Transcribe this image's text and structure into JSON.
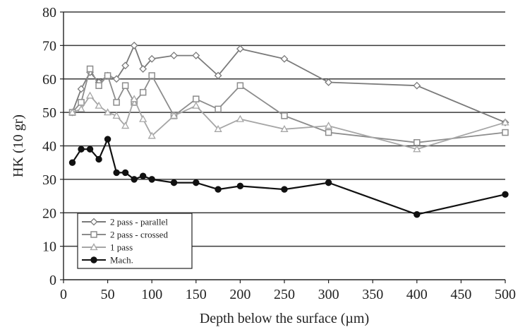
{
  "chart_data": {
    "type": "line",
    "xlabel": "Depth below the surface (µm)",
    "ylabel": "HK (10 gr)",
    "xlim": [
      0,
      500
    ],
    "ylim": [
      0,
      80
    ],
    "x_ticks": [
      0,
      50,
      100,
      150,
      200,
      250,
      300,
      350,
      400,
      450,
      500
    ],
    "y_ticks": [
      0,
      10,
      20,
      30,
      40,
      50,
      60,
      70,
      80
    ],
    "grid": "horizontal",
    "legend_position": "bottom-left",
    "series": [
      {
        "name": "2 pass - parallel",
        "color": "#7a7a7a",
        "marker": "diamond",
        "points": [
          [
            10,
            50
          ],
          [
            20,
            57
          ],
          [
            30,
            62
          ],
          [
            40,
            59
          ],
          [
            50,
            61
          ],
          [
            60,
            60
          ],
          [
            70,
            64
          ],
          [
            80,
            70
          ],
          [
            90,
            63
          ],
          [
            100,
            66
          ],
          [
            125,
            67
          ],
          [
            150,
            67
          ],
          [
            175,
            61
          ],
          [
            200,
            69
          ],
          [
            250,
            66
          ],
          [
            300,
            59
          ],
          [
            400,
            58
          ],
          [
            500,
            47
          ]
        ]
      },
      {
        "name": "2 pass - crossed",
        "color": "#8c8c8c",
        "marker": "square",
        "points": [
          [
            10,
            50
          ],
          [
            20,
            53
          ],
          [
            30,
            63
          ],
          [
            40,
            58
          ],
          [
            50,
            61
          ],
          [
            60,
            53
          ],
          [
            70,
            58
          ],
          [
            80,
            53
          ],
          [
            90,
            56
          ],
          [
            100,
            61
          ],
          [
            125,
            49
          ],
          [
            150,
            54
          ],
          [
            175,
            51
          ],
          [
            200,
            58
          ],
          [
            250,
            49
          ],
          [
            300,
            44
          ],
          [
            400,
            41
          ],
          [
            500,
            44
          ]
        ]
      },
      {
        "name": "1 pass",
        "color": "#a6a6a6",
        "marker": "triangle",
        "points": [
          [
            10,
            50
          ],
          [
            20,
            51
          ],
          [
            30,
            55
          ],
          [
            40,
            52
          ],
          [
            50,
            50
          ],
          [
            60,
            49
          ],
          [
            70,
            46
          ],
          [
            80,
            54
          ],
          [
            90,
            48
          ],
          [
            100,
            43
          ],
          [
            125,
            49
          ],
          [
            150,
            52
          ],
          [
            175,
            45
          ],
          [
            200,
            48
          ],
          [
            250,
            45
          ],
          [
            300,
            46
          ],
          [
            400,
            39
          ],
          [
            500,
            47
          ]
        ]
      },
      {
        "name": "Mach.",
        "color": "#111111",
        "marker": "circle",
        "points": [
          [
            10,
            35
          ],
          [
            20,
            39
          ],
          [
            30,
            39
          ],
          [
            40,
            36
          ],
          [
            50,
            42
          ],
          [
            60,
            32
          ],
          [
            70,
            32
          ],
          [
            80,
            30
          ],
          [
            90,
            31
          ],
          [
            100,
            30
          ],
          [
            125,
            29
          ],
          [
            150,
            29
          ],
          [
            175,
            27
          ],
          [
            200,
            28
          ],
          [
            250,
            27
          ],
          [
            300,
            29
          ],
          [
            400,
            19.5
          ],
          [
            500,
            25.5
          ]
        ]
      }
    ]
  }
}
